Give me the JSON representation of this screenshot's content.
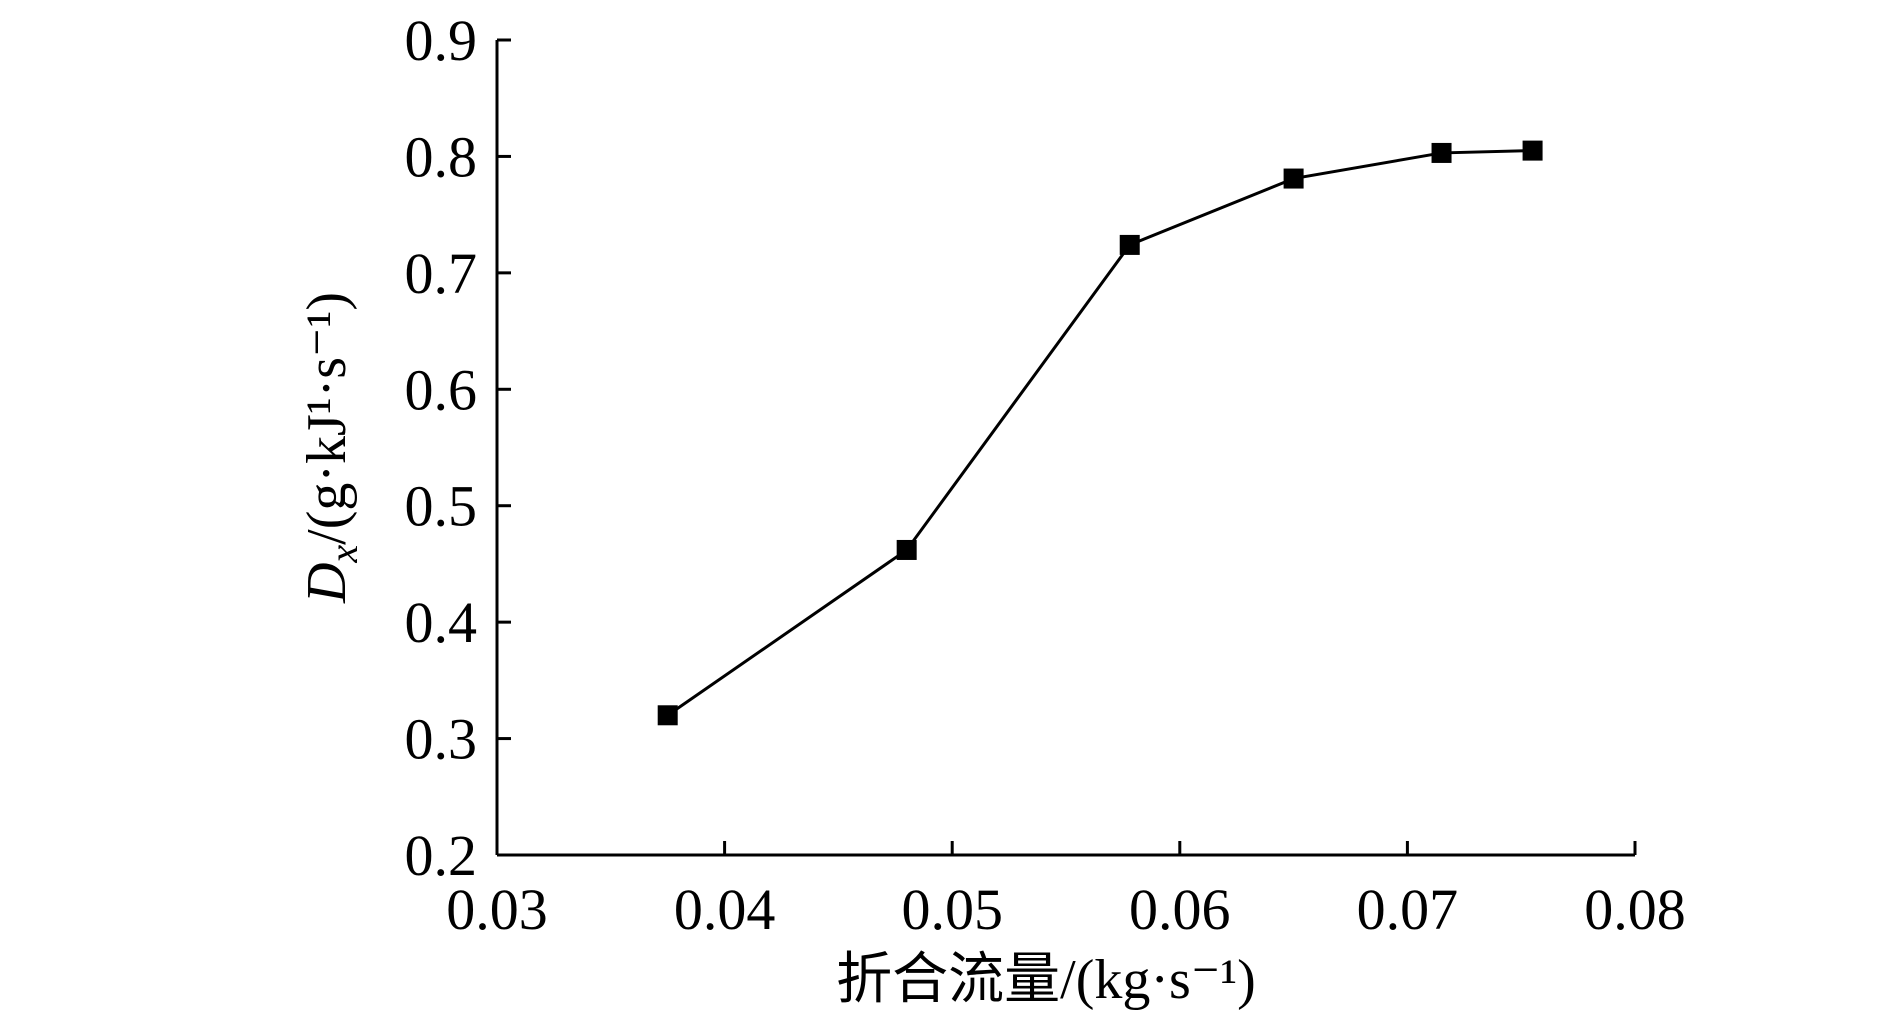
{
  "chart_data": {
    "type": "line",
    "title": "",
    "xlabel": "折合流量/(kg·s⁻¹)",
    "ylabel_main": "D",
    "ylabel_sub": "x",
    "ylabel_rest": "/(g·kJ¹·s⁻¹)",
    "xlim": [
      0.03,
      0.08
    ],
    "ylim": [
      0.2,
      0.9
    ],
    "x_ticks": [
      "0.03",
      "0.04",
      "0.05",
      "0.06",
      "0.07",
      "0.08"
    ],
    "y_ticks": [
      "0.2",
      "0.3",
      "0.4",
      "0.5",
      "0.6",
      "0.7",
      "0.8",
      "0.9"
    ],
    "grid": false,
    "series": [
      {
        "marker": "square",
        "x": [
          0.0375,
          0.048,
          0.0578,
          0.065,
          0.0715,
          0.0755
        ],
        "y": [
          0.32,
          0.462,
          0.724,
          0.781,
          0.803,
          0.805
        ]
      }
    ]
  }
}
